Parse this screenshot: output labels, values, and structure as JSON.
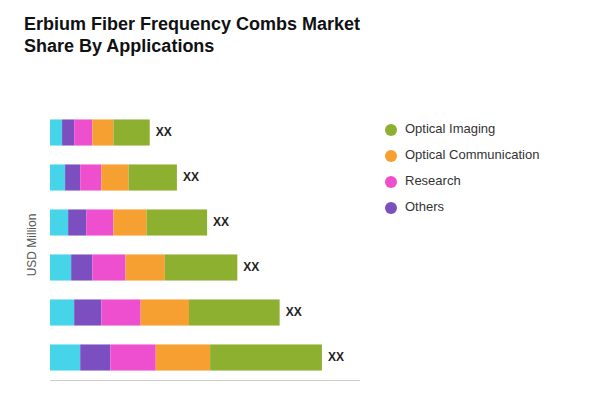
{
  "chart_data": {
    "type": "bar",
    "orientation": "horizontal",
    "stacked": true,
    "title": "Erbium Fiber Frequency Combs Market\nShare By Applications",
    "y_label": "USD Million",
    "categories": [
      null,
      null,
      null,
      null,
      null,
      null
    ],
    "series": [
      {
        "color": "#45D4E8",
        "values": [
          10,
          8,
          7,
          6,
          5,
          4
        ]
      },
      {
        "name": "Others",
        "color": "#7B4FBF",
        "values": [
          10,
          9,
          7,
          6,
          5,
          4
        ]
      },
      {
        "name": "Research",
        "color": "#EE4FCE",
        "values": [
          15,
          13,
          11,
          9,
          7,
          6
        ]
      },
      {
        "name": "Optical Communication",
        "color": "#F5A030",
        "values": [
          18,
          16,
          13,
          11,
          9,
          7
        ]
      },
      {
        "name": "Optical Imaging",
        "color": "#8DB030",
        "values": [
          37,
          30,
          24,
          20,
          16,
          12
        ]
      }
    ],
    "annotations": [
      "XX",
      "XX",
      "XX",
      "XX",
      "XX",
      "XX"
    ],
    "xlim": [
      0,
      102.6
    ],
    "tick_labels": false,
    "grid": false,
    "legend": "right"
  }
}
